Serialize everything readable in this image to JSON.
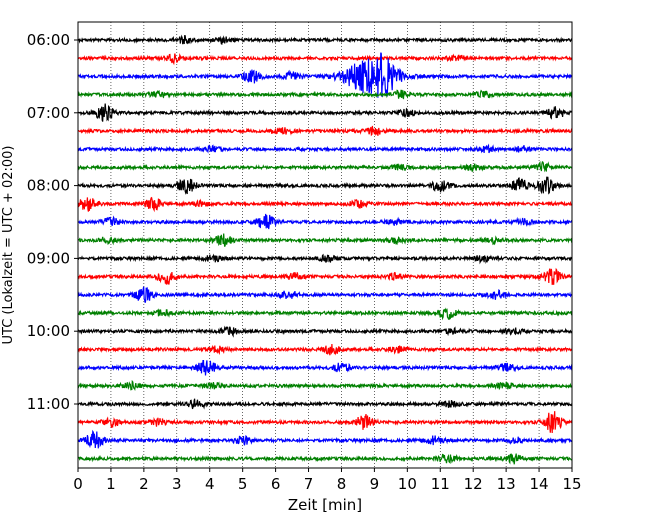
{
  "chart_data": {
    "type": "line",
    "xlabel": "Zeit  [min]",
    "ylabel": "UTC (Lokalzeit = UTC + 02:00)",
    "xlim": [
      0,
      15
    ],
    "x_ticks": [
      "0",
      "1",
      "2",
      "3",
      "4",
      "5",
      "6",
      "7",
      "8",
      "9",
      "10",
      "11",
      "12",
      "13",
      "14",
      "15"
    ],
    "y_tick_labels": [
      "06:00",
      "07:00",
      "08:00",
      "09:00",
      "10:00",
      "11:00"
    ],
    "grid": "vertical-dotted",
    "colors": [
      "#000000",
      "#ff0000",
      "#0000ff",
      "#008000"
    ],
    "traces": [
      {
        "start": "06:00",
        "color": "#000000",
        "events": [
          [
            3.2,
            0.35
          ],
          [
            4.4,
            0.3
          ]
        ]
      },
      {
        "start": "06:15",
        "color": "#ff0000",
        "events": [
          [
            2.9,
            0.4
          ],
          [
            11.5,
            0.3
          ]
        ]
      },
      {
        "start": "06:30",
        "color": "#0000ff",
        "events": [
          [
            5.3,
            0.7
          ],
          [
            8.9,
            2.0
          ],
          [
            9.3,
            1.0
          ],
          [
            6.5,
            0.4
          ]
        ]
      },
      {
        "start": "06:45",
        "color": "#008000",
        "events": [
          [
            2.4,
            0.3
          ],
          [
            9.8,
            0.4
          ],
          [
            12.3,
            0.35
          ]
        ]
      },
      {
        "start": "07:00",
        "color": "#000000",
        "events": [
          [
            0.8,
            0.9
          ],
          [
            10.0,
            0.35
          ],
          [
            14.5,
            0.6
          ]
        ]
      },
      {
        "start": "07:15",
        "color": "#ff0000",
        "events": [
          [
            6.2,
            0.35
          ],
          [
            9.0,
            0.45
          ]
        ]
      },
      {
        "start": "07:30",
        "color": "#0000ff",
        "events": [
          [
            4.1,
            0.3
          ],
          [
            12.4,
            0.3
          ],
          [
            13.5,
            0.3
          ]
        ]
      },
      {
        "start": "07:45",
        "color": "#008000",
        "events": [
          [
            9.8,
            0.3
          ],
          [
            12.0,
            0.3
          ],
          [
            14.1,
            0.45
          ]
        ]
      },
      {
        "start": "08:00",
        "color": "#000000",
        "events": [
          [
            3.3,
            0.8
          ],
          [
            11.0,
            0.6
          ],
          [
            13.4,
            0.7
          ],
          [
            14.2,
            0.9
          ]
        ]
      },
      {
        "start": "08:15",
        "color": "#ff0000",
        "events": [
          [
            0.3,
            0.8
          ],
          [
            2.3,
            0.6
          ],
          [
            3.8,
            0.3
          ],
          [
            8.5,
            0.4
          ]
        ]
      },
      {
        "start": "08:30",
        "color": "#0000ff",
        "events": [
          [
            1.0,
            0.45
          ],
          [
            5.7,
            0.8
          ],
          [
            9.6,
            0.3
          ],
          [
            13.5,
            0.3
          ]
        ]
      },
      {
        "start": "08:45",
        "color": "#008000",
        "events": [
          [
            0.9,
            0.3
          ],
          [
            4.4,
            0.6
          ],
          [
            9.7,
            0.35
          ],
          [
            12.6,
            0.3
          ]
        ]
      },
      {
        "start": "09:00",
        "color": "#000000",
        "events": [
          [
            4.1,
            0.3
          ],
          [
            7.6,
            0.35
          ],
          [
            12.3,
            0.3
          ]
        ]
      },
      {
        "start": "09:15",
        "color": "#ff0000",
        "events": [
          [
            2.7,
            0.8
          ],
          [
            6.6,
            0.35
          ],
          [
            9.6,
            0.3
          ],
          [
            14.4,
            0.8
          ]
        ]
      },
      {
        "start": "09:30",
        "color": "#0000ff",
        "events": [
          [
            2.0,
            0.8
          ],
          [
            6.4,
            0.45
          ],
          [
            12.7,
            0.4
          ]
        ]
      },
      {
        "start": "09:45",
        "color": "#008000",
        "events": [
          [
            2.6,
            0.3
          ],
          [
            11.2,
            0.6
          ]
        ]
      },
      {
        "start": "10:00",
        "color": "#000000",
        "events": [
          [
            4.6,
            0.45
          ],
          [
            11.4,
            0.3
          ],
          [
            13.2,
            0.3
          ]
        ]
      },
      {
        "start": "10:15",
        "color": "#ff0000",
        "events": [
          [
            4.2,
            0.3
          ],
          [
            7.7,
            0.45
          ],
          [
            9.7,
            0.35
          ]
        ]
      },
      {
        "start": "10:30",
        "color": "#0000ff",
        "events": [
          [
            3.9,
            0.8
          ],
          [
            8.0,
            0.45
          ],
          [
            13.0,
            0.4
          ]
        ]
      },
      {
        "start": "10:45",
        "color": "#008000",
        "events": [
          [
            1.6,
            0.4
          ],
          [
            4.1,
            0.3
          ],
          [
            13.0,
            0.3
          ]
        ]
      },
      {
        "start": "11:00",
        "color": "#000000",
        "events": [
          [
            3.6,
            0.5
          ],
          [
            11.3,
            0.3
          ]
        ]
      },
      {
        "start": "11:15",
        "color": "#ff0000",
        "events": [
          [
            1.0,
            0.5
          ],
          [
            2.4,
            0.4
          ],
          [
            8.7,
            0.8
          ],
          [
            14.4,
            1.2
          ]
        ]
      },
      {
        "start": "11:30",
        "color": "#0000ff",
        "events": [
          [
            0.5,
            0.9
          ],
          [
            5.0,
            0.4
          ],
          [
            10.8,
            0.4
          ],
          [
            13.3,
            0.3
          ]
        ]
      },
      {
        "start": "11:45",
        "color": "#008000",
        "events": [
          [
            11.2,
            0.4
          ],
          [
            13.2,
            0.5
          ]
        ]
      }
    ]
  }
}
